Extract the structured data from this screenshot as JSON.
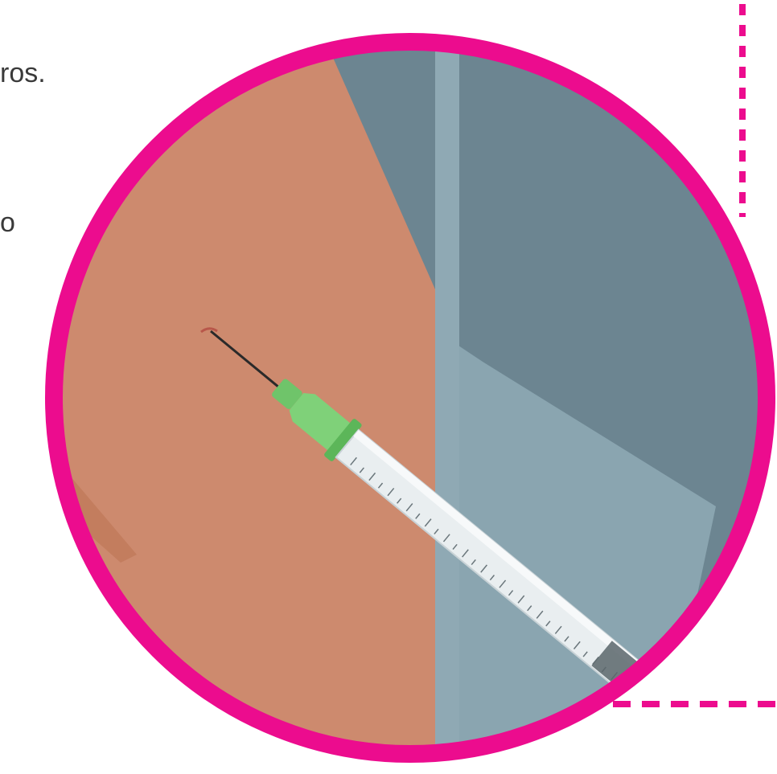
{
  "text_fragments": [
    "ros.",
    "o"
  ],
  "illustration": {
    "subject": "syringe-injection-icon",
    "colors": {
      "ring": "#ec0c8e",
      "dashed_line": "#ec0c8e",
      "skin": "#cd8a6e",
      "skin_shadow": "#b8704f",
      "dark_surface": "#475055",
      "wall_light": "#8aa5b0",
      "wall_dark": "#6c8591",
      "needle_hub": "#6fc46a",
      "barrel": "#dde6ea",
      "plunger": "#5b666b"
    }
  }
}
